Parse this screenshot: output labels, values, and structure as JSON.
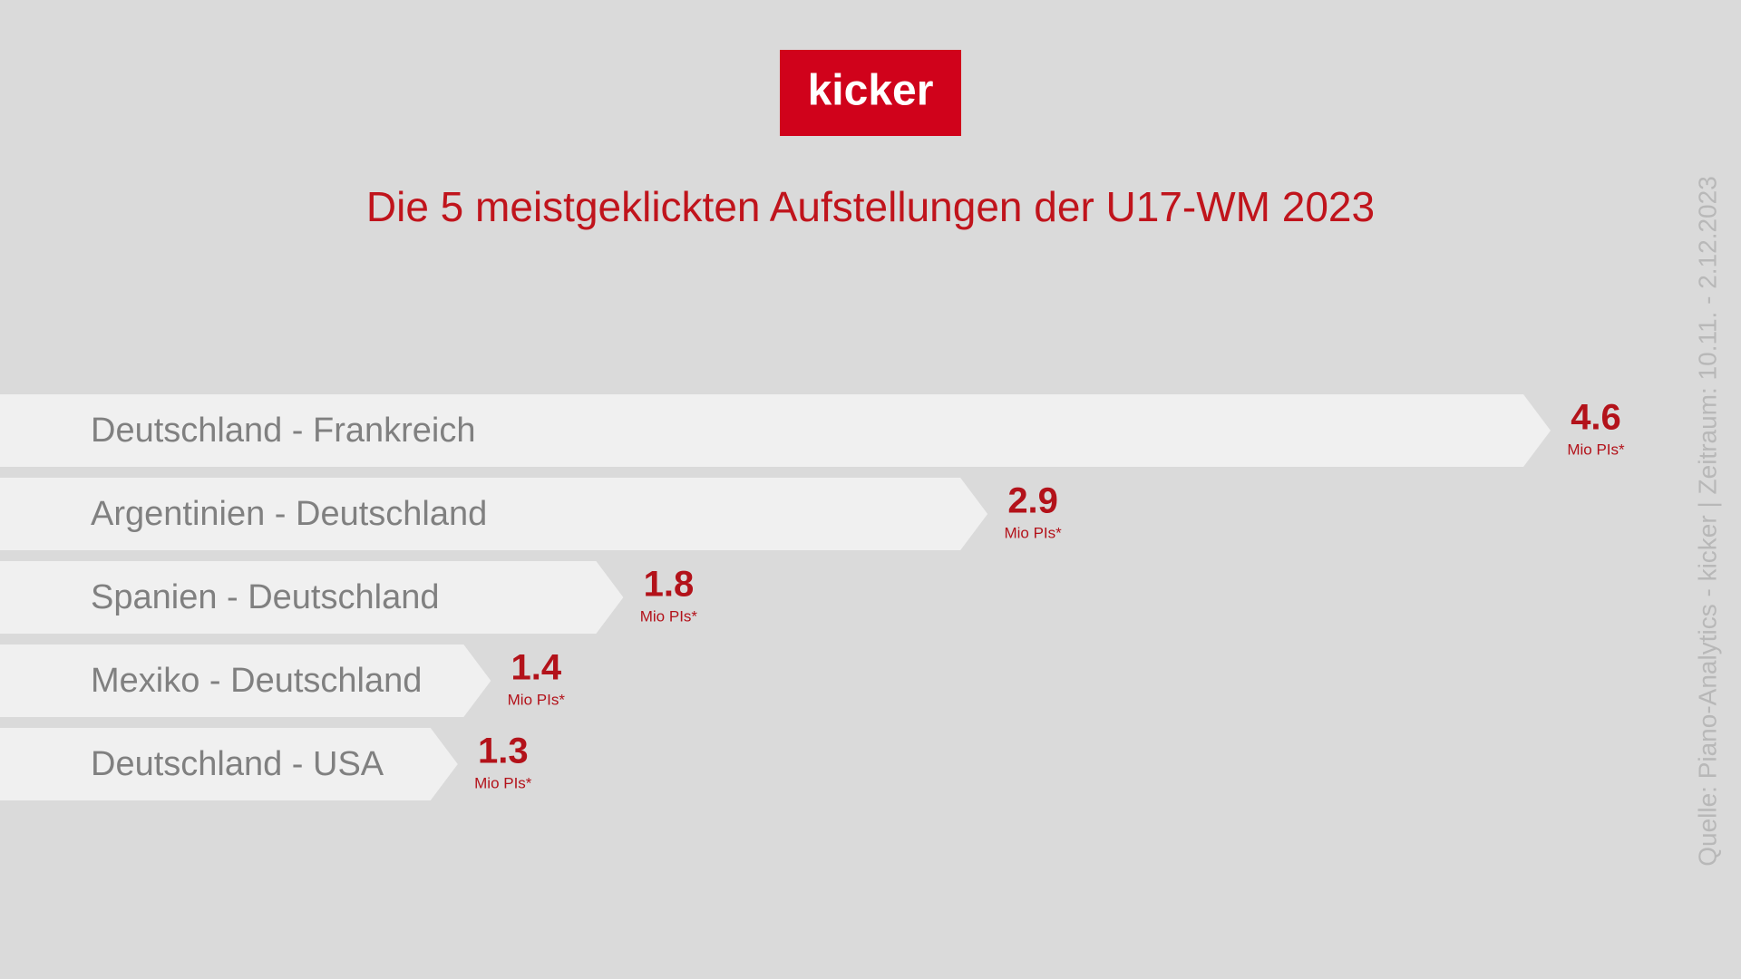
{
  "chart_data": {
    "type": "bar",
    "orientation": "horizontal",
    "logo": "kicker",
    "title": "Die 5 meistgeklickten Aufstellungen der U17-WM 2023",
    "categories": [
      "Deutschland - Frankreich",
      "Argentinien - Deutschland",
      "Spanien - Deutschland",
      "Mexiko - Deutschland",
      "Deutschland - USA"
    ],
    "values": [
      4.6,
      2.9,
      1.8,
      1.4,
      1.3
    ],
    "unit_label": "Mio PIs*",
    "color": "#f0f0f0",
    "value_color": "#b3121a",
    "source": "Quelle: Piano-Analytics - kicker | Zeitraum: 10.11. - 2.12.2023"
  }
}
